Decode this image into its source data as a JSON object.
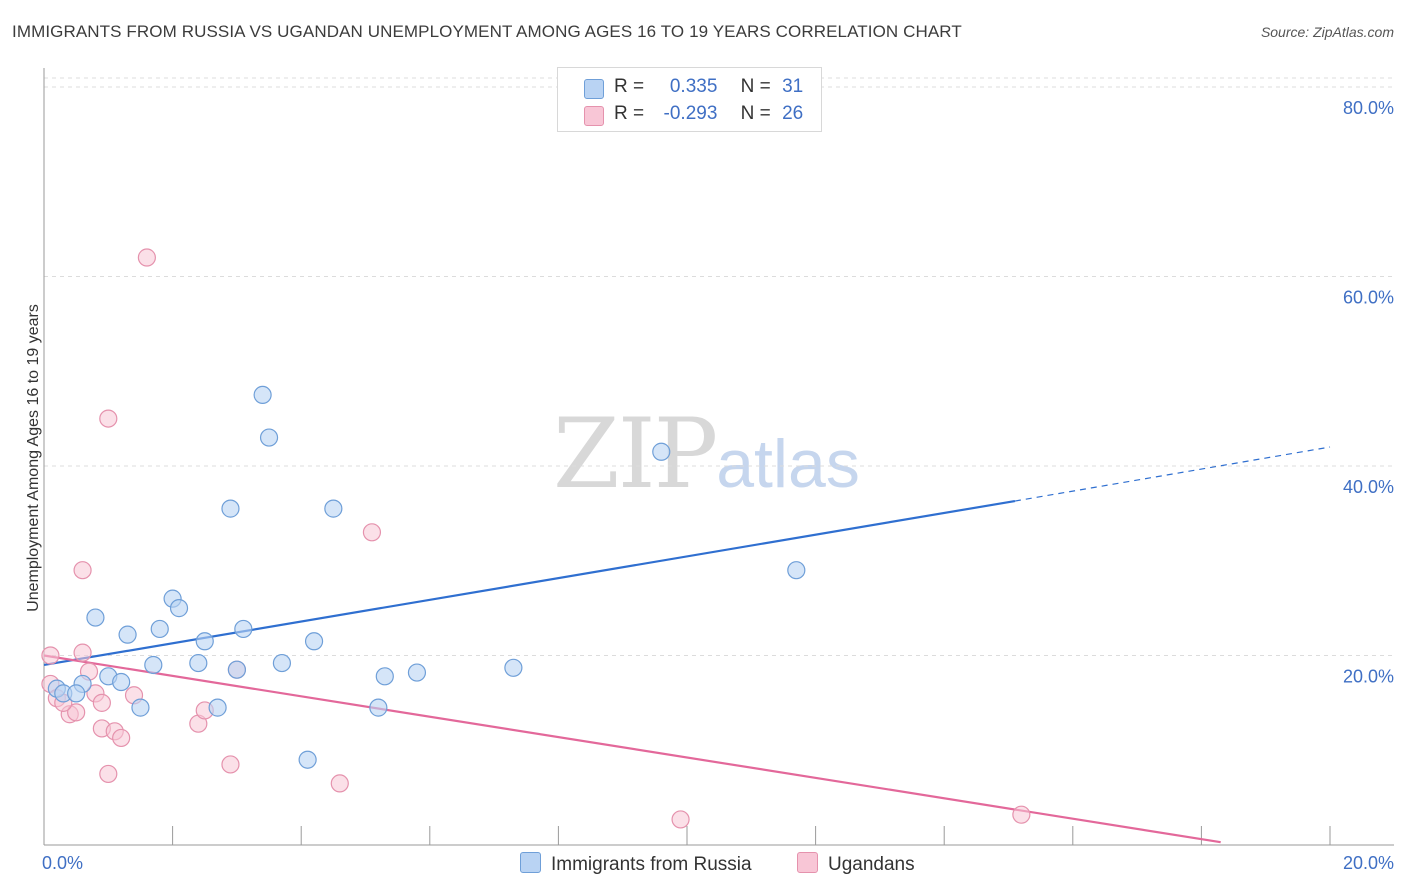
{
  "title": "IMMIGRANTS FROM RUSSIA VS UGANDAN UNEMPLOYMENT AMONG AGES 16 TO 19 YEARS CORRELATION CHART",
  "source": "Source: ZipAtlas.com",
  "watermark": {
    "zip": "ZIP",
    "atlas": "atlas"
  },
  "colors": {
    "blue_fill": "#b9d3f3",
    "blue_stroke": "#6f9fd8",
    "blue_line": "#2f6fd0",
    "pink_fill": "#f8c6d6",
    "pink_stroke": "#e592ad",
    "pink_line": "#e3689a",
    "axis_text": "#3f6fc4"
  },
  "legend": {
    "rows": [
      {
        "r_label": "R =",
        "r_value": "0.335",
        "n_label": "N =",
        "n_value": "31"
      },
      {
        "r_label": "R =",
        "r_value": "-0.293",
        "n_label": "N =",
        "n_value": "26"
      }
    ]
  },
  "bottom_legend": {
    "series1": "Immigrants from Russia",
    "series2": "Ugandans"
  },
  "chart_data": {
    "type": "scatter",
    "xlabel": "",
    "ylabel": "Unemployment Among Ages 16 to 19 years",
    "xlim": [
      0,
      20
    ],
    "ylim": [
      0,
      82
    ],
    "x_tick_labels": [
      "0.0%",
      "20.0%"
    ],
    "y_ticks": [
      20,
      40,
      60,
      80
    ],
    "y_tick_labels": [
      "20.0%",
      "40.0%",
      "60.0%",
      "80.0%"
    ],
    "grid": true,
    "legend": "top-center",
    "series": [
      {
        "name": "Immigrants from Russia",
        "r": 0.335,
        "n": 31,
        "points": [
          [
            0.2,
            16.5
          ],
          [
            0.3,
            16.0
          ],
          [
            0.6,
            17.0
          ],
          [
            0.8,
            24.0
          ],
          [
            1.0,
            17.8
          ],
          [
            1.2,
            17.2
          ],
          [
            1.3,
            22.2
          ],
          [
            1.5,
            14.5
          ],
          [
            1.7,
            19.0
          ],
          [
            1.8,
            22.8
          ],
          [
            2.0,
            26.0
          ],
          [
            2.1,
            25.0
          ],
          [
            2.4,
            19.2
          ],
          [
            2.5,
            21.5
          ],
          [
            2.7,
            14.5
          ],
          [
            2.9,
            35.5
          ],
          [
            3.0,
            18.5
          ],
          [
            3.1,
            22.8
          ],
          [
            3.4,
            47.5
          ],
          [
            3.5,
            43.0
          ],
          [
            3.7,
            19.2
          ],
          [
            4.1,
            9.0
          ],
          [
            4.2,
            21.5
          ],
          [
            4.5,
            35.5
          ],
          [
            5.2,
            14.5
          ],
          [
            5.3,
            17.8
          ],
          [
            5.8,
            18.2
          ],
          [
            7.3,
            18.7
          ],
          [
            9.6,
            41.5
          ],
          [
            11.7,
            29.0
          ],
          [
            0.5,
            16.0
          ]
        ],
        "trend": {
          "x0": 0,
          "y0": 19.0,
          "x1": 15.1,
          "y1": 36.3,
          "x_dash_end": 20.0,
          "y_dash_end": 42.0
        }
      },
      {
        "name": "Ugandans",
        "r": -0.293,
        "n": 26,
        "points": [
          [
            0.1,
            17.0
          ],
          [
            0.2,
            15.5
          ],
          [
            0.4,
            13.8
          ],
          [
            0.5,
            14.0
          ],
          [
            0.6,
            20.3
          ],
          [
            0.6,
            29.0
          ],
          [
            0.7,
            18.3
          ],
          [
            0.8,
            16.0
          ],
          [
            0.9,
            15.0
          ],
          [
            0.9,
            12.3
          ],
          [
            1.0,
            45.0
          ],
          [
            1.0,
            7.5
          ],
          [
            1.1,
            12.0
          ],
          [
            1.2,
            11.3
          ],
          [
            1.4,
            15.8
          ],
          [
            1.6,
            62.0
          ],
          [
            2.4,
            12.8
          ],
          [
            2.5,
            14.2
          ],
          [
            2.9,
            8.5
          ],
          [
            3.0,
            18.5
          ],
          [
            4.6,
            6.5
          ],
          [
            5.1,
            33.0
          ],
          [
            9.9,
            2.7
          ],
          [
            15.2,
            3.2
          ],
          [
            0.1,
            20.0
          ],
          [
            0.3,
            15.0
          ]
        ],
        "trend": {
          "x0": 0,
          "y0": 20.0,
          "x1": 18.3,
          "y1": 0.3
        }
      }
    ]
  }
}
